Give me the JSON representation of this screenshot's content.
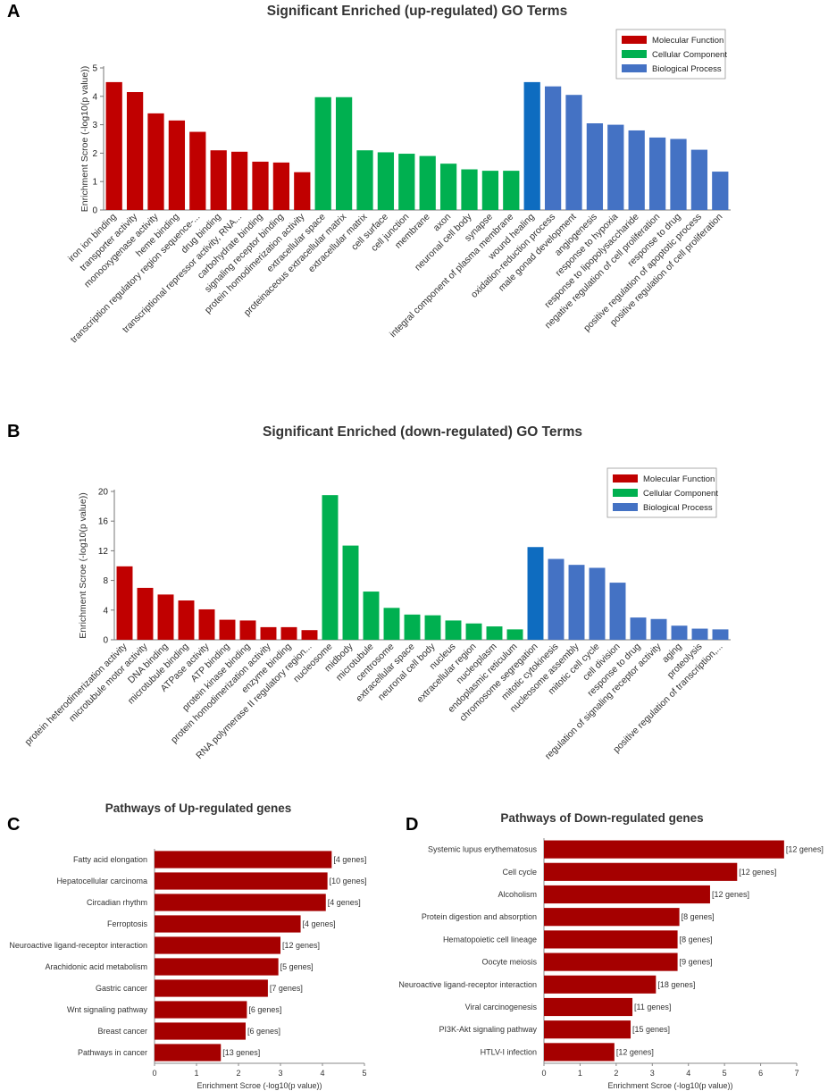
{
  "colors": {
    "molecular_function": "#c00000",
    "cellular_component": "#00b050",
    "biological_process": "#4472c4",
    "biological_process_highlight": "#0e6cc0",
    "pathway_bar": "#a50000"
  },
  "panels": {
    "a": "A",
    "b": "B",
    "c": "C",
    "d": "D"
  },
  "chart_data": [
    {
      "id": "A",
      "type": "bar",
      "title": "Significant Enriched (up-regulated) GO Terms",
      "ylabel": "Enrichment Scroe (-log10(p value))",
      "xlabel": "",
      "ylim": [
        0,
        5
      ],
      "yticks": [
        0,
        1,
        2,
        3,
        4,
        5
      ],
      "grid": false,
      "legend_position": "top-right",
      "legend": [
        {
          "label": "Molecular Function",
          "group": "molecular_function"
        },
        {
          "label": "Cellular Component",
          "group": "cellular_component"
        },
        {
          "label": "Biological  Process",
          "group": "biological_process"
        }
      ],
      "categories": [
        "iron ion binding",
        "transporter activity",
        "monooxygenase activity",
        "heme binding",
        "transcription regulatory region sequence-...",
        "drug binding",
        "transcriptional repressor activity, RNA...",
        "carbohydrate binding",
        "signaling receptor binding",
        "protein homodimerization activity",
        "extracellular space",
        "proteinaceous extracellular matrix",
        "extracellular matrix",
        "cell surface",
        "cell junction",
        "membrane",
        "axon",
        "neuronal cell body",
        "synapse",
        "integral component of plasma membrane",
        "wound healing",
        "oxidation-reduction process",
        "male gonad development",
        "angiogenesis",
        "response to hypoxia",
        "response to lipopolysaccharide",
        "negative regulation of cell proliferation",
        "response to drug",
        "positive regulation of apoptotic process",
        "positive regulation of cell proliferation"
      ],
      "values": [
        4.5,
        4.15,
        3.4,
        3.15,
        2.75,
        2.1,
        2.05,
        1.7,
        1.67,
        1.33,
        3.97,
        3.97,
        2.1,
        2.03,
        1.98,
        1.9,
        1.63,
        1.43,
        1.38,
        1.38,
        4.5,
        4.35,
        4.05,
        3.05,
        3.0,
        2.8,
        2.55,
        2.5,
        2.12,
        1.35
      ],
      "groups": [
        "molecular_function",
        "molecular_function",
        "molecular_function",
        "molecular_function",
        "molecular_function",
        "molecular_function",
        "molecular_function",
        "molecular_function",
        "molecular_function",
        "molecular_function",
        "cellular_component",
        "cellular_component",
        "cellular_component",
        "cellular_component",
        "cellular_component",
        "cellular_component",
        "cellular_component",
        "cellular_component",
        "cellular_component",
        "cellular_component",
        "biological_process_highlight",
        "biological_process",
        "biological_process",
        "biological_process",
        "biological_process",
        "biological_process",
        "biological_process",
        "biological_process",
        "biological_process",
        "biological_process"
      ]
    },
    {
      "id": "B",
      "type": "bar",
      "title": "Significant Enriched (down-regulated) GO Terms",
      "ylabel": "Enrichment Scroe (-log10(p value))",
      "xlabel": "",
      "ylim": [
        0,
        20
      ],
      "yticks": [
        0,
        4,
        8,
        12,
        16,
        20
      ],
      "grid": false,
      "legend_position": "top-right",
      "legend": [
        {
          "label": "Molecular Function",
          "group": "molecular_function"
        },
        {
          "label": "Cellular Component",
          "group": "cellular_component"
        },
        {
          "label": "Biological  Process",
          "group": "biological_process"
        }
      ],
      "categories": [
        "protein heterodimerization activity",
        "microtubule motor activity",
        "DNA binding",
        "microtubule binding",
        "ATPase activity",
        "ATP binding",
        "protein kinase binding",
        "protein homodimerization activity",
        "enzyme binding",
        "RNA polymerase II regulatory region...",
        "nucleosome",
        "midbody",
        "microtubule",
        "centrosome",
        "extracellular space",
        "neuronal cell body",
        "nucleus",
        "extracellular region",
        "nucleoplasm",
        "endoplasmic reticulum",
        "chromosome segregation",
        "mitotic cytokinesis",
        "nucleosome assembly",
        "mitotic cell cycle",
        "cell division",
        "response to drug",
        "regulation of signaling receptor activity",
        "aging",
        "proteolysis",
        "positive regulation of transcription,..."
      ],
      "values": [
        9.9,
        7.0,
        6.1,
        5.3,
        4.1,
        2.7,
        2.6,
        1.7,
        1.7,
        1.3,
        19.5,
        12.7,
        6.5,
        4.3,
        3.4,
        3.3,
        2.6,
        2.2,
        1.8,
        1.4,
        12.5,
        10.9,
        10.1,
        9.7,
        7.7,
        3.0,
        2.8,
        1.9,
        1.5,
        1.4
      ],
      "groups": [
        "molecular_function",
        "molecular_function",
        "molecular_function",
        "molecular_function",
        "molecular_function",
        "molecular_function",
        "molecular_function",
        "molecular_function",
        "molecular_function",
        "molecular_function",
        "cellular_component",
        "cellular_component",
        "cellular_component",
        "cellular_component",
        "cellular_component",
        "cellular_component",
        "cellular_component",
        "cellular_component",
        "cellular_component",
        "cellular_component",
        "biological_process_highlight",
        "biological_process",
        "biological_process",
        "biological_process",
        "biological_process",
        "biological_process",
        "biological_process",
        "biological_process",
        "biological_process",
        "biological_process"
      ]
    },
    {
      "id": "C",
      "type": "bar",
      "orientation": "horizontal",
      "title": "Pathways of Up-regulated genes",
      "xlabel": "Enrichment Scroe (-log10(p value))",
      "ylabel": "",
      "xlim": [
        0,
        5
      ],
      "xticks": [
        0,
        1,
        2,
        3,
        4,
        5
      ],
      "grid": false,
      "categories": [
        "Fatty acid elongation",
        "Hepatocellular carcinoma",
        "Circadian rhythm",
        "Ferroptosis",
        "Neuroactive ligand-receptor interaction",
        "Arachidonic acid metabolism",
        "Gastric cancer",
        "Wnt signaling pathway",
        "Breast cancer",
        "Pathways in cancer"
      ],
      "values": [
        4.22,
        4.12,
        4.08,
        3.48,
        3.0,
        2.95,
        2.7,
        2.2,
        2.17,
        1.58
      ],
      "annotations": [
        "[4 genes]",
        "[10 genes]",
        "[4 genes]",
        "[4 genes]",
        "[12 genes]",
        "[5 genes]",
        "[7 genes]",
        "[6 genes]",
        "[6 genes]",
        "[13 genes]"
      ]
    },
    {
      "id": "D",
      "type": "bar",
      "orientation": "horizontal",
      "title": "Pathways of Down-regulated genes",
      "xlabel": "Enrichment Scroe (-log10(p value))",
      "ylabel": "",
      "xlim": [
        0,
        7
      ],
      "xticks": [
        0,
        1,
        2,
        3,
        4,
        5,
        6,
        7
      ],
      "grid": false,
      "categories": [
        "Systemic lupus erythematosus",
        "Cell cycle",
        "Alcoholism",
        "Protein digestion and absorption",
        "Hematopoietic cell lineage",
        "Oocyte meiosis",
        "Neuroactive ligand-receptor interaction",
        "Viral carcinogenesis",
        "PI3K-Akt signaling pathway",
        "HTLV-I infection"
      ],
      "values": [
        6.65,
        5.35,
        4.6,
        3.75,
        3.7,
        3.7,
        3.1,
        2.45,
        2.4,
        1.95
      ],
      "annotations": [
        "[12 genes]",
        "[12 genes]",
        "[12 genes]",
        "[8 genes]",
        "[8 genes]",
        "[9 genes]",
        "[18 genes]",
        "[11 genes]",
        "[15 genes]",
        "[12 genes]"
      ]
    }
  ]
}
